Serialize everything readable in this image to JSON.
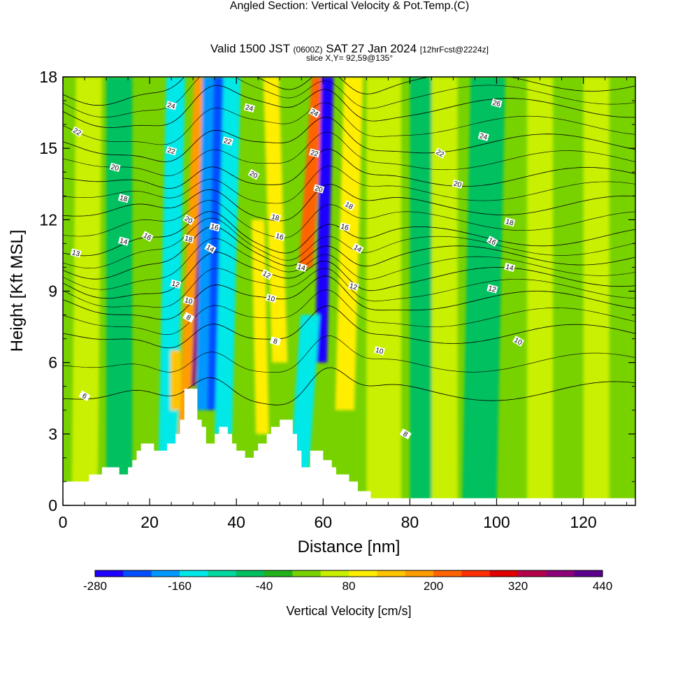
{
  "titles": {
    "main": "Angled Section: Vertical Velocity & Pot.Temp.",
    "main_unit": "(C)",
    "valid_a": "Valid 1500 JST",
    "valid_b": "(0600Z)",
    "valid_c": "SAT 27 Jan 2024",
    "valid_d": "[12hrFcst@2224z]",
    "slice": "slice X,Y= 92,59@135°"
  },
  "colors": {
    "bands": [
      "#1e00ff",
      "#0050ff",
      "#0098ff",
      "#00e8e8",
      "#00d8a0",
      "#00c060",
      "#21b31a",
      "#78d200",
      "#c8f000",
      "#ffee00",
      "#ffc400",
      "#ff9c00",
      "#ff6400",
      "#ff2e00",
      "#e00000",
      "#b4004a",
      "#8c0078",
      "#5a008c"
    ],
    "background": "#78d200",
    "terrain": "#ffffff"
  },
  "chart_data": {
    "type": "heatmap",
    "xlabel": "Distance [nm]",
    "ylabel": "Height [Kft MSL]",
    "xlim": [
      0,
      132
    ],
    "ylim": [
      0,
      18
    ],
    "xticks": [
      "0",
      "20",
      "40",
      "60",
      "80",
      "100",
      "120"
    ],
    "xtick_values": [
      0,
      20,
      40,
      60,
      80,
      100,
      120
    ],
    "yticks": [
      "0",
      "3",
      "6",
      "9",
      "12",
      "15",
      "18"
    ],
    "ytick_values": [
      0,
      3,
      6,
      9,
      12,
      15,
      18
    ],
    "colorbar": {
      "label": "Vertical Velocity [cm/s]",
      "range": [
        -280,
        440
      ],
      "step": 40,
      "tick_labels": [
        "-280",
        "-160",
        "-40",
        "80",
        "200",
        "320",
        "440"
      ],
      "tick_values": [
        -280,
        -160,
        -40,
        80,
        200,
        320,
        440
      ]
    },
    "velocity_features": [
      {
        "x": 29,
        "x_top": 33,
        "y_min": 5,
        "y_max": 18,
        "w": 1.6,
        "v": 360
      },
      {
        "x": 27.5,
        "x_top": 31.5,
        "y_min": 1.5,
        "y_max": 18,
        "w": 1.2,
        "v": 160
      },
      {
        "x": 34,
        "x_top": 36,
        "y_min": 4,
        "y_max": 18,
        "w": 1.5,
        "v": -240
      },
      {
        "x": 32,
        "x_top": 33.5,
        "y_min": 4,
        "y_max": 18,
        "w": 1.3,
        "v": -200
      },
      {
        "x": 24,
        "x_top": 26,
        "y_min": 0,
        "y_max": 18,
        "w": 2.2,
        "v": -140
      },
      {
        "x": 37,
        "x_top": 39,
        "y_min": 3,
        "y_max": 18,
        "w": 2.0,
        "v": -140
      },
      {
        "x": 56,
        "x_top": 59,
        "y_min": 10,
        "y_max": 18,
        "w": 1.6,
        "v": 220
      },
      {
        "x": 59.5,
        "x_top": 61,
        "y_min": 6,
        "y_max": 18,
        "w": 1.4,
        "v": -260
      },
      {
        "x": 54,
        "x_top": 57,
        "y_min": 0,
        "y_max": 8,
        "w": 2.2,
        "v": -140
      },
      {
        "x": 65,
        "x_top": 67,
        "y_min": 4,
        "y_max": 18,
        "w": 2.2,
        "v": 80
      },
      {
        "x": 50,
        "x_top": 48,
        "y_min": 6,
        "y_max": 18,
        "w": 1.8,
        "v": 80
      },
      {
        "x": 46,
        "x_top": 45,
        "y_min": 3,
        "y_max": 12,
        "w": 1.5,
        "v": 80
      },
      {
        "x": 26,
        "x_top": 26,
        "y_min": 4,
        "y_max": 6.5,
        "w": 1.2,
        "v": 120
      },
      {
        "x": 84,
        "x_top": 84,
        "y_min": 0,
        "y_max": 18,
        "w": 4,
        "v": -50
      },
      {
        "x": 96,
        "x_top": 98,
        "y_min": 0,
        "y_max": 18,
        "w": 4,
        "v": -50
      },
      {
        "x": 110,
        "x_top": 110,
        "y_min": 0,
        "y_max": 18,
        "w": 3,
        "v": 40
      },
      {
        "x": 123,
        "x_top": 123,
        "y_min": 0,
        "y_max": 18,
        "w": 3,
        "v": 40
      },
      {
        "x": 5,
        "x_top": 6,
        "y_min": 0,
        "y_max": 18,
        "w": 3,
        "v": 40
      },
      {
        "x": 13,
        "x_top": 13,
        "y_min": 0,
        "y_max": 18,
        "w": 3,
        "v": -50
      },
      {
        "x": 74,
        "x_top": 74,
        "y_min": 0,
        "y_max": 18,
        "w": 4,
        "v": 60
      },
      {
        "x": 88,
        "x_top": 88,
        "y_min": 0,
        "y_max": 18,
        "w": 3,
        "v": 60
      }
    ],
    "terrain": [
      [
        0,
        1
      ],
      [
        6,
        1
      ],
      [
        6,
        1.3
      ],
      [
        8,
        1.3
      ],
      [
        8,
        1.3
      ],
      [
        9,
        1.3
      ],
      [
        9,
        1.6
      ],
      [
        13,
        1.6
      ],
      [
        13,
        1.3
      ],
      [
        15,
        1.3
      ],
      [
        15,
        1.6
      ],
      [
        16,
        1.6
      ],
      [
        16,
        1.9
      ],
      [
        17,
        1.9
      ],
      [
        17,
        2.3
      ],
      [
        18,
        2.3
      ],
      [
        18,
        2.6
      ],
      [
        20,
        2.6
      ],
      [
        20,
        2.6
      ],
      [
        21,
        2.6
      ],
      [
        21,
        2.3
      ],
      [
        24,
        2.3
      ],
      [
        24,
        2.6
      ],
      [
        25,
        2.6
      ],
      [
        25,
        2.6
      ],
      [
        26,
        2.6
      ],
      [
        26,
        3.0
      ],
      [
        27,
        3.0
      ],
      [
        27,
        3.6
      ],
      [
        28,
        3.6
      ],
      [
        28,
        4.9
      ],
      [
        31,
        4.9
      ],
      [
        31,
        3.6
      ],
      [
        32,
        3.6
      ],
      [
        32,
        3.3
      ],
      [
        33,
        3.3
      ],
      [
        33,
        2.6
      ],
      [
        35,
        2.6
      ],
      [
        35,
        3.0
      ],
      [
        36,
        3.0
      ],
      [
        36,
        3.3
      ],
      [
        38,
        3.3
      ],
      [
        38,
        3.0
      ],
      [
        39,
        3.0
      ],
      [
        39,
        2.6
      ],
      [
        40,
        2.6
      ],
      [
        40,
        2.3
      ],
      [
        42,
        2.3
      ],
      [
        42,
        2.0
      ],
      [
        44,
        2.0
      ],
      [
        44,
        2.3
      ],
      [
        45,
        2.3
      ],
      [
        45,
        2.6
      ],
      [
        47,
        2.6
      ],
      [
        47,
        3.0
      ],
      [
        48,
        3.0
      ],
      [
        48,
        3.3
      ],
      [
        50,
        3.3
      ],
      [
        50,
        3.6
      ],
      [
        53,
        3.6
      ],
      [
        53,
        3.0
      ],
      [
        54,
        3.0
      ],
      [
        54,
        2.3
      ],
      [
        55,
        2.3
      ],
      [
        55,
        1.6
      ],
      [
        57,
        1.6
      ],
      [
        57,
        2.3
      ],
      [
        60,
        2.3
      ],
      [
        60,
        1.9
      ],
      [
        62,
        1.9
      ],
      [
        62,
        1.6
      ],
      [
        63,
        1.6
      ],
      [
        63,
        1.3
      ],
      [
        66,
        1.3
      ],
      [
        66,
        1.0
      ],
      [
        68,
        1.0
      ],
      [
        68,
        0.6
      ],
      [
        71,
        0.6
      ],
      [
        71,
        0.3
      ],
      [
        132,
        0.3
      ]
    ],
    "isentropes": [
      {
        "label": "6",
        "base": 4.8,
        "gap_after": "24"
      },
      {
        "label": "8",
        "base": 7.2
      },
      {
        "label": "10",
        "base": 8.6
      },
      {
        "label": "12",
        "base": 9.6
      },
      {
        "label": "14",
        "base": 10.5
      },
      {
        "label": "16",
        "base": 11.3
      },
      {
        "label": "18",
        "base": 12.6
      },
      {
        "label": "20",
        "base": 13.8
      },
      {
        "label": "22",
        "base": 15.2
      },
      {
        "label": "24",
        "base": 16.7
      },
      {
        "label": "26",
        "base": 17.8
      }
    ],
    "contour_labels": [
      {
        "text": "22",
        "x": 3.3,
        "y": 15.7
      },
      {
        "text": "20",
        "x": 12,
        "y": 14.2
      },
      {
        "text": "18",
        "x": 14,
        "y": 12.9
      },
      {
        "text": "16",
        "x": 19.5,
        "y": 11.3
      },
      {
        "text": "14",
        "x": 14,
        "y": 11.1
      },
      {
        "text": "13",
        "x": 3,
        "y": 10.6
      },
      {
        "text": "6",
        "x": 5,
        "y": 4.6
      },
      {
        "text": "24",
        "x": 25,
        "y": 16.8
      },
      {
        "text": "22",
        "x": 25,
        "y": 14.9
      },
      {
        "text": "20",
        "x": 29,
        "y": 12.0
      },
      {
        "text": "18",
        "x": 29,
        "y": 11.2
      },
      {
        "text": "16",
        "x": 35,
        "y": 11.7
      },
      {
        "text": "14",
        "x": 34,
        "y": 10.8
      },
      {
        "text": "12",
        "x": 26,
        "y": 9.3
      },
      {
        "text": "10",
        "x": 29,
        "y": 8.6
      },
      {
        "text": "8",
        "x": 29,
        "y": 7.9
      },
      {
        "text": "24",
        "x": 43,
        "y": 16.7
      },
      {
        "text": "22",
        "x": 38,
        "y": 15.3
      },
      {
        "text": "20",
        "x": 44,
        "y": 13.9
      },
      {
        "text": "18",
        "x": 49,
        "y": 12.1
      },
      {
        "text": "16",
        "x": 50,
        "y": 11.3
      },
      {
        "text": "12",
        "x": 47,
        "y": 9.7
      },
      {
        "text": "10",
        "x": 48,
        "y": 8.7
      },
      {
        "text": "8",
        "x": 49,
        "y": 6.9
      },
      {
        "text": "24",
        "x": 58,
        "y": 16.5
      },
      {
        "text": "22",
        "x": 58,
        "y": 14.8
      },
      {
        "text": "20",
        "x": 59,
        "y": 13.3
      },
      {
        "text": "18",
        "x": 66,
        "y": 12.6
      },
      {
        "text": "16",
        "x": 65,
        "y": 11.7
      },
      {
        "text": "14",
        "x": 55,
        "y": 10.0
      },
      {
        "text": "14",
        "x": 68,
        "y": 10.8
      },
      {
        "text": "12",
        "x": 67,
        "y": 9.2
      },
      {
        "text": "10",
        "x": 73,
        "y": 6.5
      },
      {
        "text": "8",
        "x": 79,
        "y": 3.0
      },
      {
        "text": "26",
        "x": 100,
        "y": 16.9
      },
      {
        "text": "24",
        "x": 97,
        "y": 15.5
      },
      {
        "text": "22",
        "x": 87,
        "y": 14.8
      },
      {
        "text": "20",
        "x": 91,
        "y": 13.5
      },
      {
        "text": "18",
        "x": 103,
        "y": 11.9
      },
      {
        "text": "16",
        "x": 99,
        "y": 11.1
      },
      {
        "text": "14",
        "x": 103,
        "y": 10.0
      },
      {
        "text": "12",
        "x": 99,
        "y": 9.1
      },
      {
        "text": "10",
        "x": 105,
        "y": 6.9
      }
    ]
  }
}
